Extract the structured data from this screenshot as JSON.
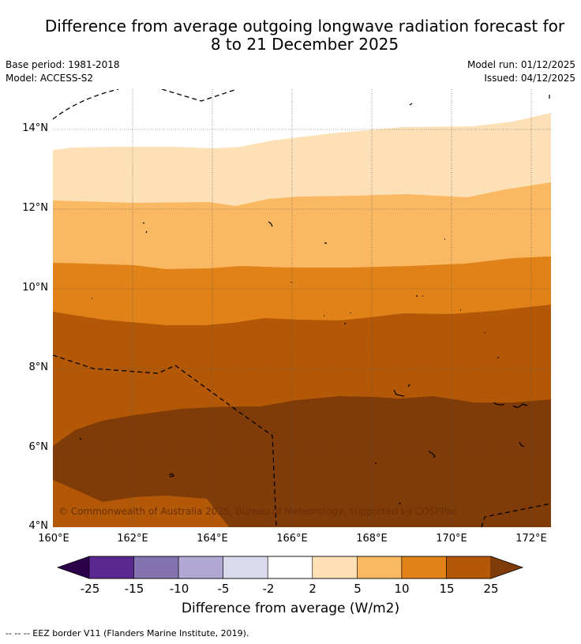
{
  "title": {
    "line1": "Difference from average outgoing longwave radiation forecast for",
    "line2": "8 to 21 December 2025"
  },
  "meta": {
    "base_period": "Base period: 1981-2018",
    "model": "Model: ACCESS-S2",
    "model_run": "Model run: 01/12/2025",
    "issued": "Issued: 04/12/2025"
  },
  "map": {
    "lat_labels": [
      "14°N",
      "12°N",
      "10°N",
      "8°N",
      "6°N",
      "4°N"
    ],
    "lon_labels": [
      "160°E",
      "162°E",
      "164°E",
      "166°E",
      "168°E",
      "170°E",
      "172°E"
    ],
    "copyright": "© Commonwealth of Australia 2025, Bureau of Meteorology, supported by COSPPac",
    "fill_colors": {
      "band_2_5": "#fde0b6",
      "band_5_10": "#fbb862",
      "band_10_15": "#e08217",
      "band_15_20": "#b35806",
      "band_20_25": "#7f3b08"
    }
  },
  "colorbar": {
    "ticks": [
      "-25",
      "-15",
      "-10",
      "-5",
      "-2",
      "2",
      "5",
      "10",
      "15",
      "25"
    ],
    "title": "Difference from average (W/m2)",
    "colors": [
      "#5a2890",
      "#8373b0",
      "#b1a9d4",
      "#d9daec",
      "#ffffff",
      "#fde0b6",
      "#fbb862",
      "#e08217",
      "#b35806"
    ],
    "low_extend_color": "#2d004b",
    "high_extend_color": "#7f3b08"
  },
  "footnote": "--  --  -- EEZ border V11 (Flanders Marine Institute, 2019)."
}
